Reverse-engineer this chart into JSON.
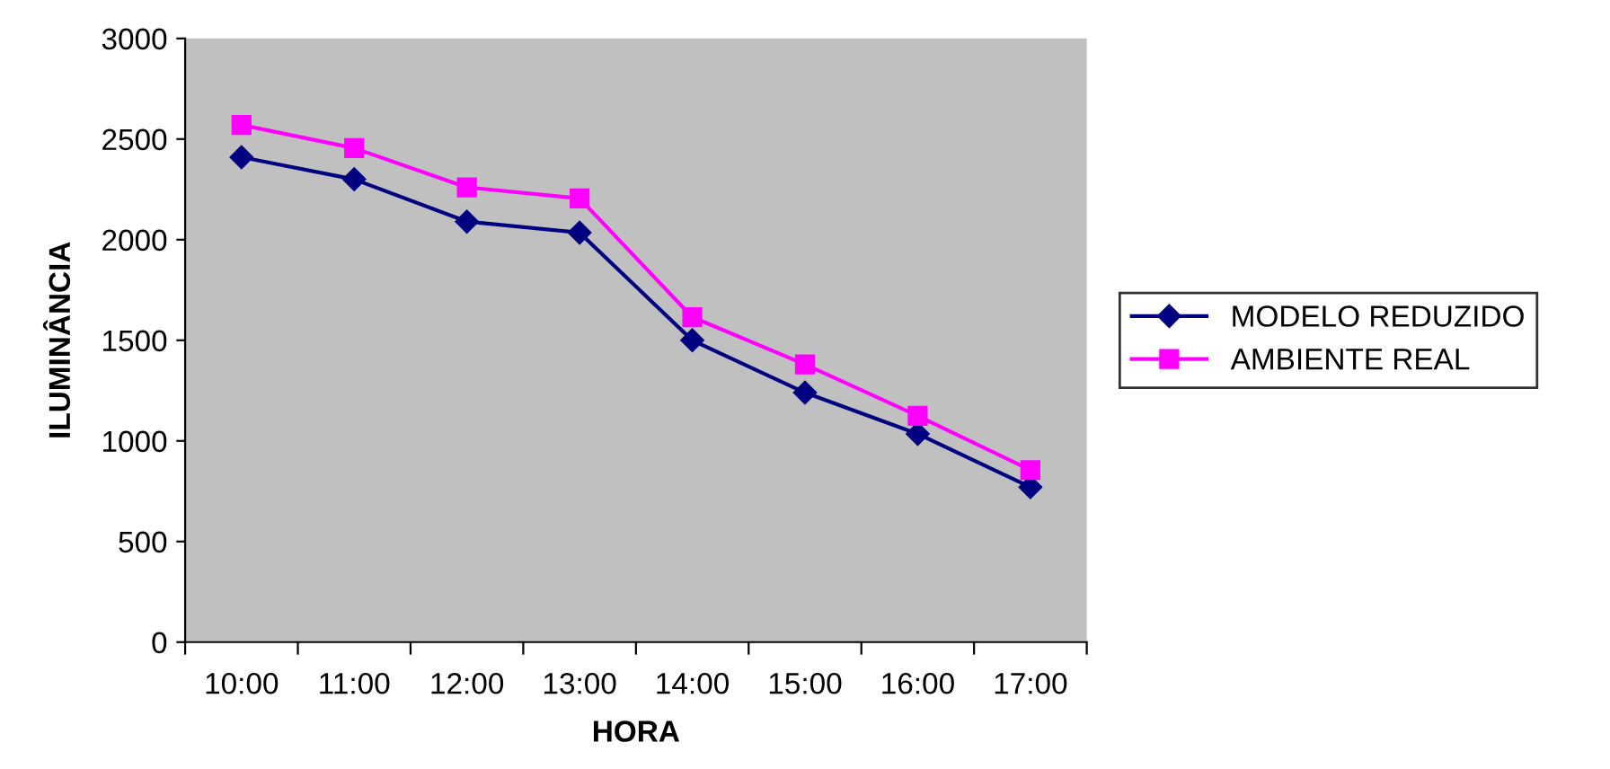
{
  "chart_data": {
    "type": "line",
    "xlabel": "HORA",
    "ylabel": "ILUMINÂNCIA",
    "categories": [
      "10:00",
      "11:00",
      "12:00",
      "13:00",
      "14:00",
      "15:00",
      "16:00",
      "17:00"
    ],
    "series": [
      {
        "name": "MODELO REDUZIDO",
        "color": "#000080",
        "marker": "diamond",
        "values": [
          2410,
          2300,
          2090,
          2035,
          1500,
          1240,
          1035,
          770
        ]
      },
      {
        "name": "AMBIENTE REAL",
        "color": "#ff00ff",
        "marker": "square",
        "values": [
          2570,
          2455,
          2260,
          2205,
          1615,
          1380,
          1125,
          855
        ]
      }
    ],
    "ylim": [
      0,
      3000
    ],
    "yticks": [
      0,
      500,
      1000,
      1500,
      2000,
      2500,
      3000
    ],
    "grid": false,
    "legend": "right",
    "line_style": "solid"
  }
}
